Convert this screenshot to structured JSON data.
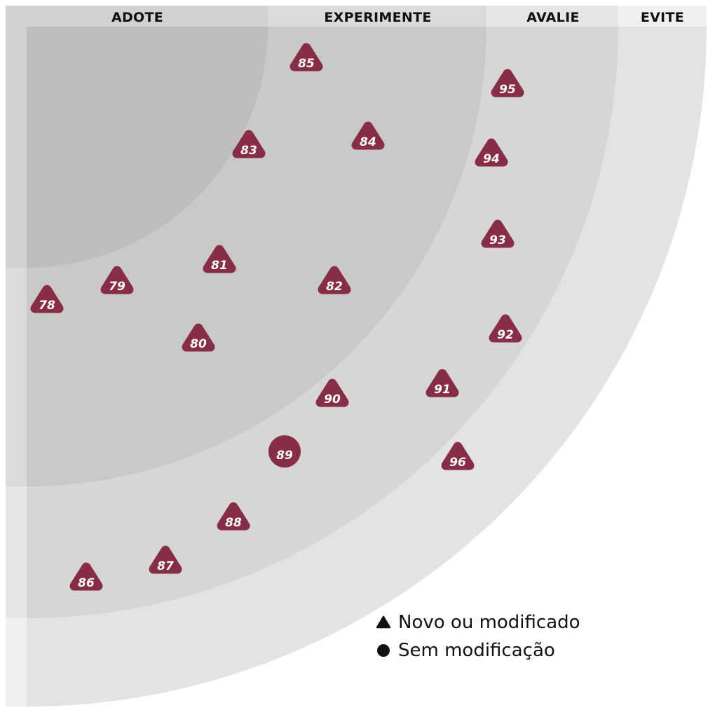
{
  "rings": [
    {
      "id": "adote",
      "label": "ADOTE"
    },
    {
      "id": "experimente",
      "label": "EXPERIMENTE"
    },
    {
      "id": "avalie",
      "label": "AVALIE"
    },
    {
      "id": "evite",
      "label": "EVITE"
    }
  ],
  "blips": [
    {
      "number": "78",
      "ring": "adote",
      "shape": "triangle"
    },
    {
      "number": "79",
      "ring": "adote",
      "shape": "triangle"
    },
    {
      "number": "80",
      "ring": "experimente",
      "shape": "triangle"
    },
    {
      "number": "81",
      "ring": "experimente",
      "shape": "triangle"
    },
    {
      "number": "82",
      "ring": "experimente",
      "shape": "triangle"
    },
    {
      "number": "83",
      "ring": "experimente",
      "shape": "triangle"
    },
    {
      "number": "84",
      "ring": "experimente",
      "shape": "triangle"
    },
    {
      "number": "85",
      "ring": "experimente",
      "shape": "triangle"
    },
    {
      "number": "86",
      "ring": "avalie",
      "shape": "triangle"
    },
    {
      "number": "87",
      "ring": "avalie",
      "shape": "triangle"
    },
    {
      "number": "88",
      "ring": "avalie",
      "shape": "triangle"
    },
    {
      "number": "89",
      "ring": "avalie",
      "shape": "circle"
    },
    {
      "number": "90",
      "ring": "avalie",
      "shape": "triangle"
    },
    {
      "number": "91",
      "ring": "avalie",
      "shape": "triangle"
    },
    {
      "number": "92",
      "ring": "avalie",
      "shape": "triangle"
    },
    {
      "number": "93",
      "ring": "avalie",
      "shape": "triangle"
    },
    {
      "number": "94",
      "ring": "avalie",
      "shape": "triangle"
    },
    {
      "number": "95",
      "ring": "avalie",
      "shape": "triangle"
    },
    {
      "number": "96",
      "ring": "evite",
      "shape": "triangle"
    }
  ],
  "legend": {
    "new_label": "Novo ou modificado",
    "unchanged_label": "Sem modificação"
  },
  "colors": {
    "blip": "#882d46",
    "blip_text": "#ffffff",
    "ring_adote": "#bdbdbd",
    "ring_experimente": "#c9c9c9",
    "ring_avalie": "#d6d6d6",
    "ring_evite": "#e3e3e3",
    "legend_marker": "#111111"
  }
}
